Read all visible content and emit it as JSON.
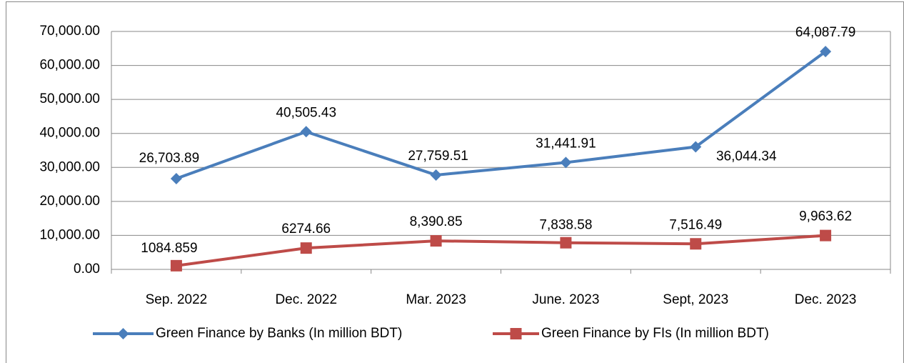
{
  "chart_data": {
    "type": "line",
    "categories": [
      "Sep. 2022",
      "Dec. 2022",
      "Mar. 2023",
      "June. 2023",
      "Sept, 2023",
      "Dec. 2023"
    ],
    "series": [
      {
        "name": "Green Finance by Banks (In million BDT)",
        "color": "#4a7ebb",
        "marker": "diamond",
        "values": [
          26703.89,
          40505.43,
          27759.51,
          31441.91,
          36044.34,
          64087.79
        ],
        "value_labels": [
          "26,703.89",
          "40,505.43",
          "27,759.51",
          "31,441.91",
          "36,044.34",
          "64,087.79"
        ]
      },
      {
        "name": "Green Finance by FIs (In million BDT)",
        "color": "#be4b48",
        "marker": "square",
        "values": [
          1084.859,
          6274.66,
          8390.85,
          7838.58,
          7516.49,
          9963.62
        ],
        "value_labels": [
          "1084.859",
          "6274.66",
          "8,390.85",
          "7,838.58",
          "7,516.49",
          "9,963.62"
        ]
      }
    ],
    "ylim": [
      0,
      70000
    ],
    "yticks": [
      {
        "value": 0,
        "label": "0.00"
      },
      {
        "value": 10000,
        "label": "10,000.00"
      },
      {
        "value": 20000,
        "label": "20,000.00"
      },
      {
        "value": 30000,
        "label": "30,000.00"
      },
      {
        "value": 40000,
        "label": "40,000.00"
      },
      {
        "value": 50000,
        "label": "50,000.00"
      },
      {
        "value": 60000,
        "label": "60,000.00"
      },
      {
        "value": 70000,
        "label": "70,000.00"
      }
    ],
    "grid": true,
    "legend": "bottom"
  }
}
